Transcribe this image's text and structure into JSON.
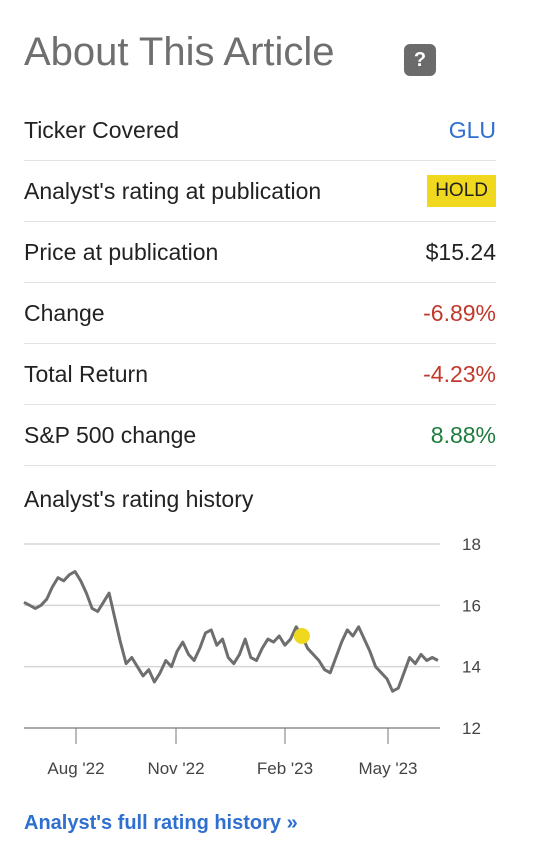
{
  "header": {
    "title": "About This Article",
    "help_label": "?"
  },
  "rows": [
    {
      "label": "Ticker Covered",
      "value": "GLU"
    },
    {
      "label": "Analyst's rating at publication",
      "value": "HOLD"
    },
    {
      "label": "Price at publication",
      "value": "$15.24"
    },
    {
      "label": "Change",
      "value": "-6.89%"
    },
    {
      "label": "Total Return",
      "value": "-4.23%"
    },
    {
      "label": "S&P 500 change",
      "value": "8.88%"
    }
  ],
  "colors": {
    "link": "#2f6fcf",
    "negative": "#c0392b",
    "positive": "#1e7c3d",
    "badge": "#f0d81e",
    "line": "#6e6e6e",
    "marker": "#f0d81e"
  },
  "history": {
    "title": "Analyst's rating history"
  },
  "chart_data": {
    "type": "line",
    "x_tick_labels": [
      "Aug '22",
      "Nov '22",
      "Feb '23",
      "May '23"
    ],
    "y_ticks": [
      12,
      14,
      16,
      18
    ],
    "ylim": [
      12,
      18
    ],
    "grid": true,
    "series": [
      {
        "values": [
          16.1,
          16.0,
          15.9,
          16.0,
          16.2,
          16.6,
          16.9,
          16.8,
          17.0,
          17.1,
          16.8,
          16.4,
          15.9,
          15.8,
          16.1,
          16.4,
          15.6,
          14.8,
          14.1,
          14.3,
          14.0,
          13.7,
          13.9,
          13.5,
          13.8,
          14.2,
          14.0,
          14.5,
          14.8,
          14.4,
          14.2,
          14.6,
          15.1,
          15.2,
          14.7,
          14.9,
          14.3,
          14.1,
          14.4,
          14.9,
          14.3,
          14.2,
          14.6,
          14.9,
          14.8,
          15.0,
          14.7,
          14.9,
          15.3,
          15.0,
          14.6,
          14.4,
          14.2,
          13.9,
          13.8,
          14.3,
          14.8,
          15.2,
          15.0,
          15.3,
          14.9,
          14.5,
          14.0,
          13.8,
          13.6,
          13.2,
          13.3,
          13.8,
          14.3,
          14.1,
          14.4,
          14.2,
          14.3,
          14.2
        ]
      }
    ],
    "marker": {
      "x_index": 49,
      "value": 15.0
    }
  },
  "footer": {
    "full_history_link": "Analyst's full rating history »"
  }
}
